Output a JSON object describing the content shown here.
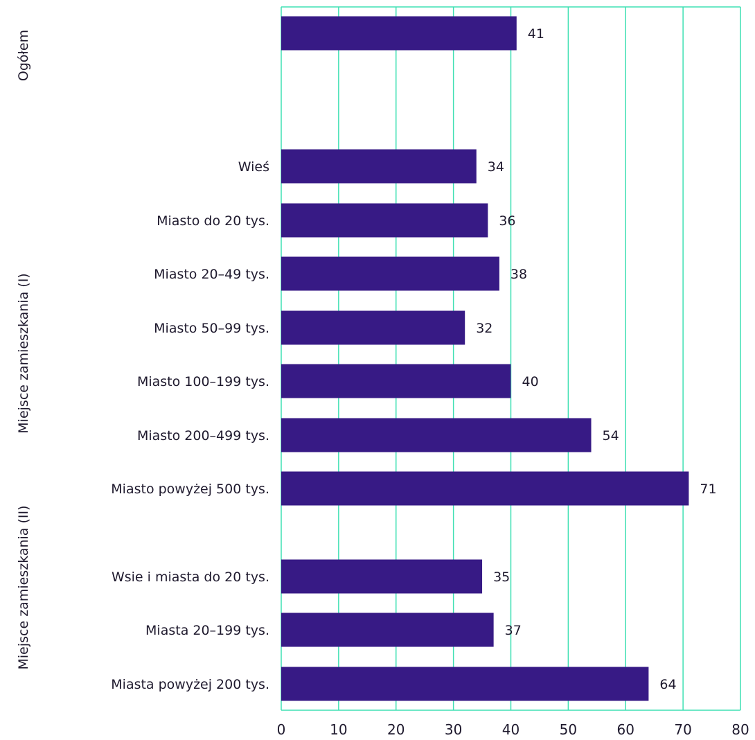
{
  "chart_data": {
    "type": "bar",
    "orientation": "horizontal",
    "xlim": [
      0,
      80
    ],
    "x_ticks": [
      0,
      10,
      20,
      30,
      40,
      50,
      60,
      70,
      80
    ],
    "grid": "vertical",
    "colors": {
      "bar": "#371a85",
      "grid": "#3fe0b3",
      "text": "#1f1a2e"
    },
    "groups": [
      {
        "label": "Ogółem",
        "categories": [
          ""
        ],
        "values": [
          41
        ]
      },
      {
        "label": "Miejsce zamieszkania (I)",
        "categories": [
          "Wieś",
          "Miasto do 20 tys.",
          "Miasto 20–49 tys.",
          "Miasto 50–99 tys.",
          "Miasto 100–199 tys.",
          "Miasto 200–499 tys.",
          "Miasto powyżej 500 tys."
        ],
        "values": [
          34,
          36,
          38,
          32,
          40,
          54,
          71
        ]
      },
      {
        "label": "Miejsce zamieszkania (II)",
        "categories": [
          "Wsie i miasta do 20 tys.",
          "Miasta 20–199 tys.",
          "Miasta powyżej 200 tys."
        ],
        "values": [
          35,
          37,
          64
        ]
      }
    ]
  }
}
